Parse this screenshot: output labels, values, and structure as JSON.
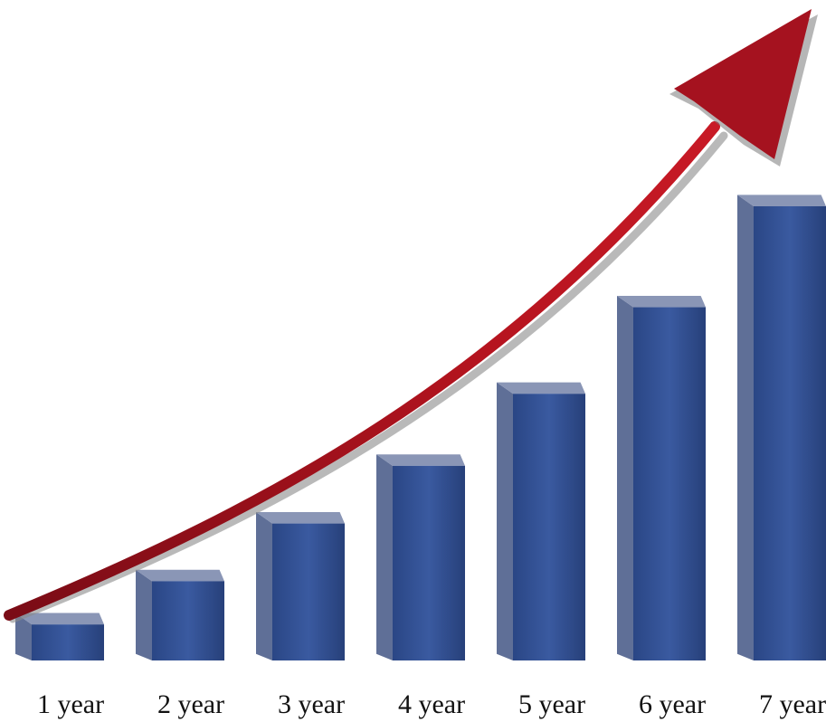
{
  "chart_data": {
    "type": "bar",
    "categories": [
      "1 year",
      "2 year",
      "3 year",
      "4 year",
      "5 year",
      "6 year",
      "7 year"
    ],
    "values": [
      5,
      11,
      19,
      27,
      37,
      49,
      63
    ],
    "ylim": [
      0,
      65
    ],
    "title": "",
    "xlabel": "",
    "ylabel": "",
    "grid": false,
    "legend": "none",
    "trend_arrow": true,
    "colors": {
      "bar_front": "#2f4f91",
      "bar_front_dark": "#243e75",
      "bar_side": "#5f6f97",
      "bar_top": "#8a96b6",
      "arrow": "#a5121f",
      "arrow_dark": "#6d0c14",
      "arrow_shadow": "#8a8a8a"
    }
  }
}
